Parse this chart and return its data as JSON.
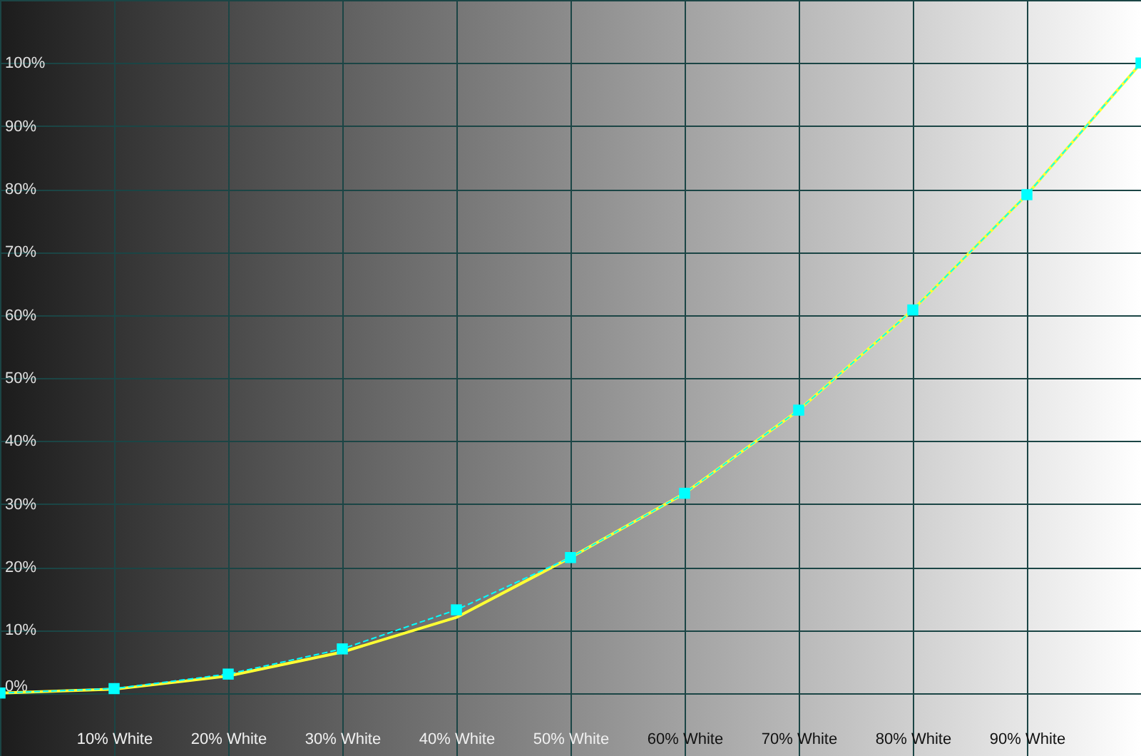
{
  "chart_data": {
    "type": "line",
    "x": [
      0,
      10,
      20,
      30,
      40,
      50,
      60,
      70,
      80,
      90,
      100
    ],
    "xlim": [
      0,
      100
    ],
    "ylim": [
      -10,
      110
    ],
    "xticks": [
      {
        "value": 10,
        "label": "10% White"
      },
      {
        "value": 20,
        "label": "20% White"
      },
      {
        "value": 30,
        "label": "30% White"
      },
      {
        "value": 40,
        "label": "40% White"
      },
      {
        "value": 50,
        "label": "50% White"
      },
      {
        "value": 60,
        "label": "60% White"
      },
      {
        "value": 70,
        "label": "70% White"
      },
      {
        "value": 80,
        "label": "80% White"
      },
      {
        "value": 90,
        "label": "90% White"
      }
    ],
    "yticks": [
      {
        "value": 0,
        "label": "0%"
      },
      {
        "value": 10,
        "label": "10%"
      },
      {
        "value": 20,
        "label": "20%"
      },
      {
        "value": 30,
        "label": "30%"
      },
      {
        "value": 40,
        "label": "40%"
      },
      {
        "value": 50,
        "label": "50%"
      },
      {
        "value": 60,
        "label": "60%"
      },
      {
        "value": 70,
        "label": "70%"
      },
      {
        "value": 80,
        "label": "80%"
      },
      {
        "value": 90,
        "label": "90%"
      },
      {
        "value": 100,
        "label": "100%"
      }
    ],
    "grid": true,
    "series": [
      {
        "color": "#ffff33",
        "line_style": "solid",
        "marker": "none",
        "values": [
          0,
          0.6,
          2.7,
          6.5,
          12.0,
          21.5,
          31.7,
          44.9,
          60.8,
          79.1,
          100
        ]
      },
      {
        "color": "#00ffff",
        "line_style": "dashed",
        "marker": "square",
        "values": [
          0,
          0.7,
          3.0,
          7.0,
          13.2,
          21.5,
          31.7,
          44.9,
          60.8,
          79.1,
          100
        ]
      }
    ]
  }
}
